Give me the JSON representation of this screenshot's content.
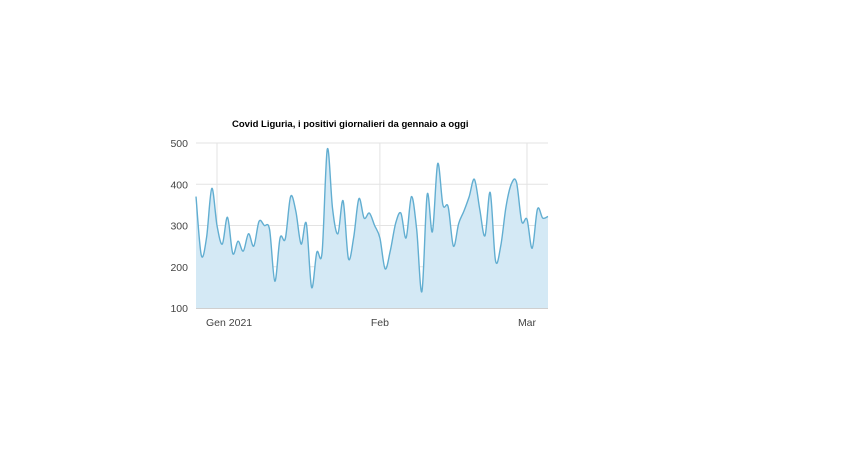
{
  "chart_data": {
    "type": "area",
    "title": "Covid Liguria, i positivi giornalieri da gennaio a oggi",
    "xlabel": "",
    "ylabel": "",
    "x_ticks": [
      {
        "label": "Gen 2021",
        "x": "2021-01-01"
      },
      {
        "label": "Feb",
        "x": "2021-02-01"
      },
      {
        "label": "Mar",
        "x": "2021-03-01"
      }
    ],
    "y_ticks": [
      "100",
      "200",
      "300",
      "400",
      "500"
    ],
    "ylim": [
      100,
      500
    ],
    "xlim": [
      "2020-12-28",
      "2021-03-02"
    ],
    "grid": true,
    "colors": {
      "line": "#62aed1",
      "fill": "#d4e9f5",
      "grid": "#e3e3e3"
    },
    "series": [
      {
        "values": [
          [
            "2020-12-28",
            370
          ],
          [
            "2020-12-29",
            228
          ],
          [
            "2020-12-30",
            270
          ],
          [
            "2020-12-31",
            390
          ],
          [
            "2021-01-01",
            300
          ],
          [
            "2021-01-02",
            255
          ],
          [
            "2021-01-03",
            320
          ],
          [
            "2021-01-04",
            232
          ],
          [
            "2021-01-05",
            262
          ],
          [
            "2021-01-06",
            238
          ],
          [
            "2021-01-07",
            280
          ],
          [
            "2021-01-08",
            250
          ],
          [
            "2021-01-09",
            310
          ],
          [
            "2021-01-10",
            300
          ],
          [
            "2021-01-11",
            290
          ],
          [
            "2021-01-12",
            165
          ],
          [
            "2021-01-13",
            270
          ],
          [
            "2021-01-14",
            268
          ],
          [
            "2021-01-15",
            370
          ],
          [
            "2021-01-16",
            335
          ],
          [
            "2021-01-17",
            255
          ],
          [
            "2021-01-18",
            305
          ],
          [
            "2021-01-19",
            150
          ],
          [
            "2021-01-20",
            235
          ],
          [
            "2021-01-21",
            235
          ],
          [
            "2021-01-22",
            485
          ],
          [
            "2021-01-23",
            340
          ],
          [
            "2021-01-24",
            280
          ],
          [
            "2021-01-25",
            360
          ],
          [
            "2021-01-26",
            220
          ],
          [
            "2021-01-27",
            270
          ],
          [
            "2021-01-28",
            365
          ],
          [
            "2021-01-29",
            318
          ],
          [
            "2021-01-30",
            330
          ],
          [
            "2021-01-31",
            300
          ],
          [
            "2021-02-01",
            270
          ],
          [
            "2021-02-02",
            195
          ],
          [
            "2021-02-03",
            240
          ],
          [
            "2021-02-04",
            305
          ],
          [
            "2021-02-05",
            330
          ],
          [
            "2021-02-06",
            270
          ],
          [
            "2021-02-07",
            370
          ],
          [
            "2021-02-08",
            290
          ],
          [
            "2021-02-09",
            140
          ],
          [
            "2021-02-10",
            375
          ],
          [
            "2021-02-11",
            285
          ],
          [
            "2021-02-12",
            450
          ],
          [
            "2021-02-13",
            350
          ],
          [
            "2021-02-14",
            345
          ],
          [
            "2021-02-15",
            250
          ],
          [
            "2021-02-16",
            305
          ],
          [
            "2021-02-17",
            335
          ],
          [
            "2021-02-18",
            370
          ],
          [
            "2021-02-19",
            412
          ],
          [
            "2021-02-20",
            340
          ],
          [
            "2021-02-21",
            275
          ],
          [
            "2021-02-22",
            380
          ],
          [
            "2021-02-23",
            215
          ],
          [
            "2021-02-24",
            250
          ],
          [
            "2021-02-25",
            345
          ],
          [
            "2021-02-26",
            400
          ],
          [
            "2021-02-27",
            405
          ],
          [
            "2021-02-28",
            310
          ],
          [
            "2021-03-01",
            315
          ],
          [
            "2021-03-02",
            245
          ],
          [
            "2021-03-03",
            340
          ],
          [
            "2021-03-04",
            318
          ],
          [
            "2021-03-05",
            322
          ]
        ]
      }
    ]
  }
}
